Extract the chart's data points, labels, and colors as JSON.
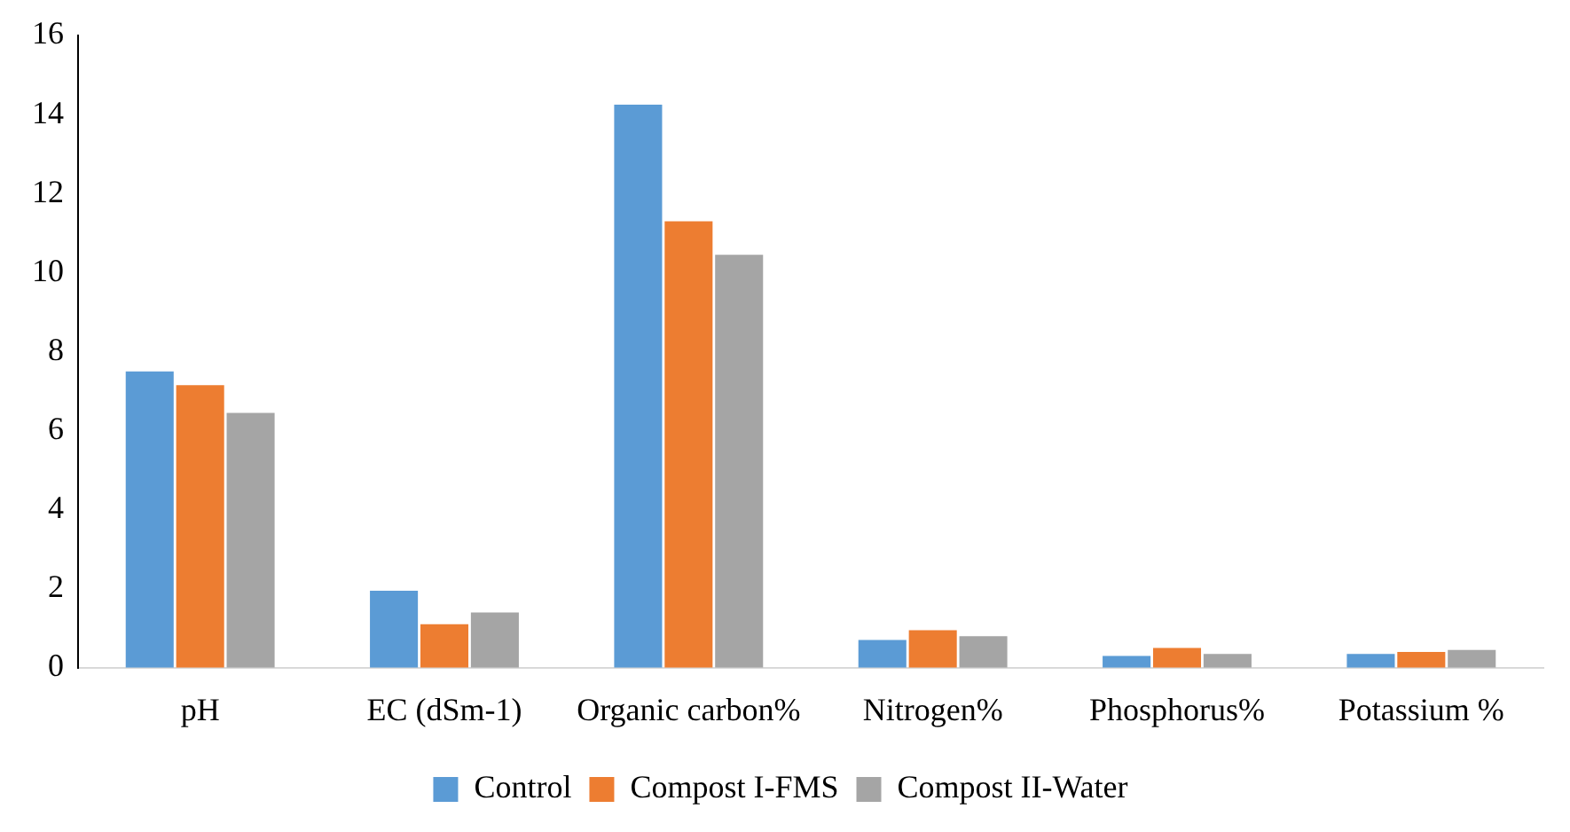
{
  "chart_data": {
    "type": "bar",
    "categories": [
      "pH",
      "EC (dSm-1)",
      "Organic carbon%",
      "Nitrogen%",
      "Phosphorus%",
      "Potassium %"
    ],
    "series": [
      {
        "name": "Control",
        "color": "#5b9bd5",
        "values": [
          7.5,
          1.95,
          14.25,
          0.7,
          0.3,
          0.35
        ]
      },
      {
        "name": "Compost I-FMS",
        "color": "#ed7d31",
        "values": [
          7.15,
          1.1,
          11.3,
          0.95,
          0.5,
          0.4
        ]
      },
      {
        "name": "Compost II-Water",
        "color": "#a5a5a5",
        "values": [
          6.45,
          1.4,
          10.45,
          0.8,
          0.35,
          0.45
        ]
      }
    ],
    "ylim": [
      0,
      16
    ],
    "yticks": [
      0,
      2,
      4,
      6,
      8,
      10,
      12,
      14,
      16
    ],
    "grid": false,
    "legend": "bottom"
  }
}
